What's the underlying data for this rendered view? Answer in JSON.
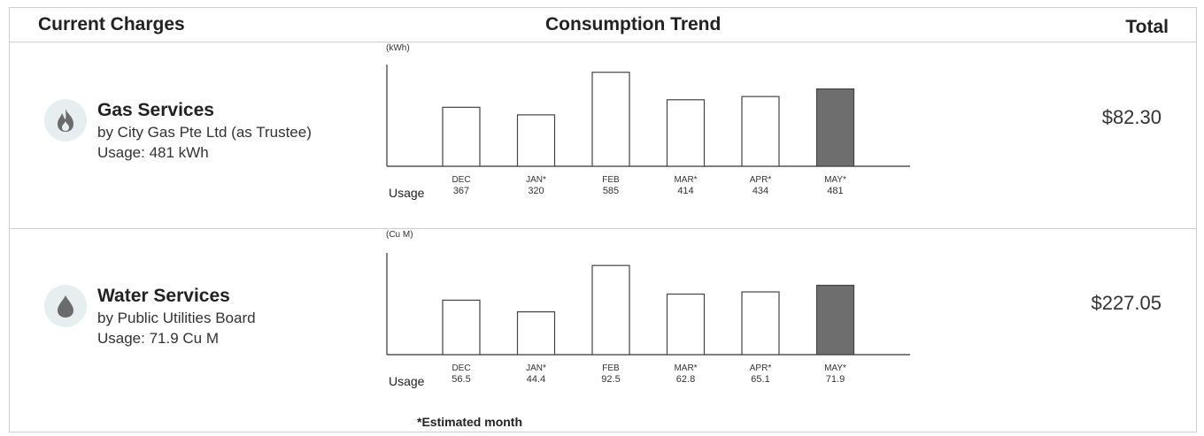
{
  "header": {
    "current_charges": "Current Charges",
    "consumption_trend": "Consumption Trend",
    "total": "Total"
  },
  "gas": {
    "name": "Gas Services",
    "provider": "by City Gas Pte Ltd (as Trustee)",
    "usage": "Usage: 481 kWh",
    "total": "$82.30",
    "icon": "flame-icon"
  },
  "water": {
    "name": "Water Services",
    "provider": "by Public Utilities Board",
    "usage": "Usage: 71.9 Cu M",
    "total": "$227.05",
    "icon": "water-drop-icon"
  },
  "usage_label": "Usage",
  "footnote": "*Estimated month",
  "colors": {
    "bar_fill": "#ffffff",
    "bar_highlight": "#6e6e6e",
    "icon_bg": "#e6eef0",
    "icon_fg": "#6b6b6b"
  },
  "chart_data": [
    {
      "type": "bar",
      "ylabel": "(kWh)",
      "categories": [
        "DEC",
        "JAN*",
        "FEB",
        "MAR*",
        "APR*",
        "MAY*"
      ],
      "values": [
        367,
        320,
        585,
        414,
        434,
        481
      ],
      "value_labels": [
        "367",
        "320",
        "585",
        "414",
        "434",
        "481"
      ],
      "ylim": [
        0,
        600
      ],
      "highlight": "MAY*",
      "grid": false
    },
    {
      "type": "bar",
      "ylabel": "(Cu M)",
      "categories": [
        "DEC",
        "JAN*",
        "FEB",
        "MAR*",
        "APR*",
        "MAY*"
      ],
      "values": [
        56.5,
        44.4,
        92.5,
        62.8,
        65.1,
        71.9
      ],
      "value_labels": [
        "56.5",
        "44.4",
        "92.5",
        "62.8",
        "65.1",
        "71.9"
      ],
      "ylim": [
        0,
        100
      ],
      "highlight": "MAY*",
      "grid": false
    }
  ]
}
